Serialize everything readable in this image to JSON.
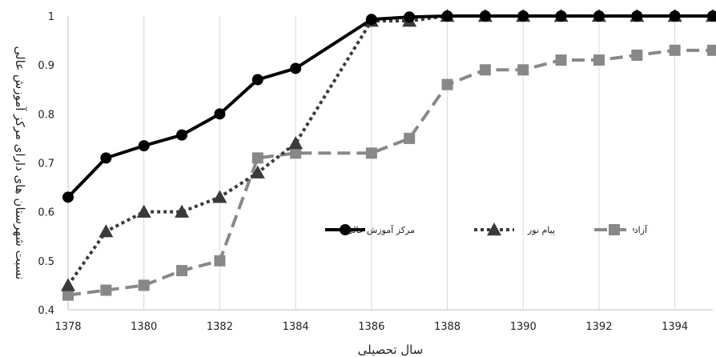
{
  "chart_data": {
    "type": "line",
    "xlabel": "سال تحصیلی",
    "ylabel": "نسبت شهرستان های دارای مرکز آموزش عالی",
    "xlim": [
      1378,
      1395
    ],
    "ylim": [
      0.4,
      1
    ],
    "x_ticks": [
      "1378",
      "1380",
      "1382",
      "1384",
      "1386",
      "1388",
      "1390",
      "1392",
      "1394"
    ],
    "y_ticks": [
      "0.4",
      "0.5",
      "0.6",
      "0.7",
      "0.8",
      "0.9",
      "1"
    ],
    "grid": "vertical",
    "legend_position": "center-right",
    "x": [
      1378,
      1379,
      1380,
      1381,
      1382,
      1383,
      1384,
      1386,
      1387,
      1388,
      1389,
      1390,
      1391,
      1392,
      1393,
      1394,
      1395
    ],
    "series": [
      {
        "name": "مرکز آموزش عالی",
        "color": "#000000",
        "line_style": "solid",
        "marker": "circle",
        "values": [
          0.63,
          0.71,
          0.735,
          0.757,
          0.8,
          0.87,
          0.893,
          0.993,
          0.998,
          1,
          1,
          1,
          1,
          1,
          1,
          1,
          1
        ]
      },
      {
        "name": "پیام نور",
        "color": "#3a3a3a",
        "line_style": "dotted",
        "marker": "triangle",
        "values": [
          0.45,
          0.56,
          0.6,
          0.6,
          0.63,
          0.68,
          0.74,
          0.99,
          0.99,
          1,
          1,
          1,
          1,
          1,
          1,
          1,
          1
        ]
      },
      {
        "name": "آزاد",
        "color": "#888888",
        "line_style": "dashed",
        "marker": "square",
        "values": [
          0.43,
          0.44,
          0.45,
          0.48,
          0.5,
          0.71,
          0.72,
          0.72,
          0.75,
          0.86,
          0.89,
          0.89,
          0.91,
          0.91,
          0.92,
          0.93,
          0.93
        ]
      }
    ]
  }
}
